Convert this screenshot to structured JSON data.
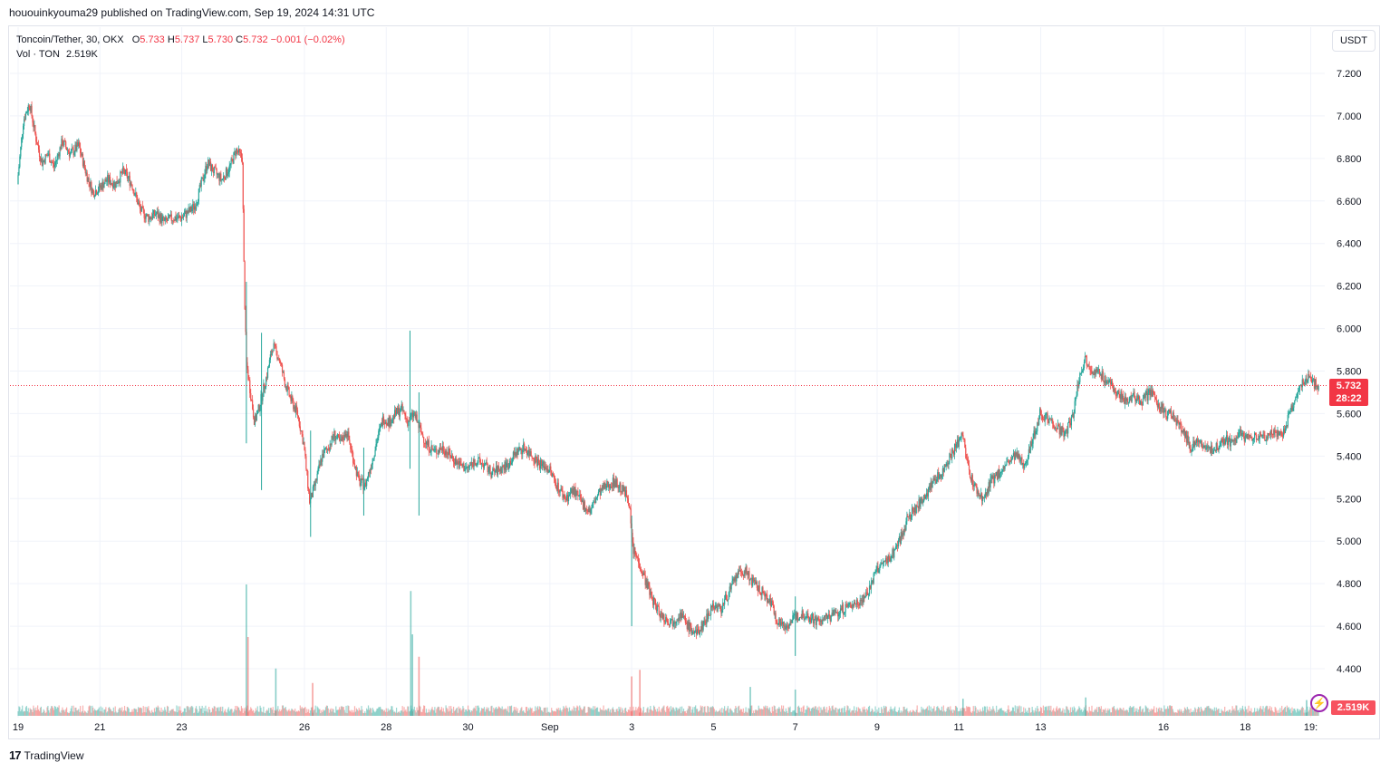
{
  "header": {
    "published_line": "hououinkyouma29 published on TradingView.com, Sep 19, 2024 14:31 UTC"
  },
  "legend": {
    "symbol": "Toncoin/Tether, 30, OKX",
    "open_label": "O",
    "open": "5.733",
    "high_label": "H",
    "high": "5.737",
    "low_label": "L",
    "low": "5.730",
    "close_label": "C",
    "close": "5.732",
    "change": "−0.001 (−0.02%)",
    "volume_label": "Vol · TON",
    "volume_value": "2.519K"
  },
  "price_axis": {
    "currency": "USDT",
    "current_price": "5.732",
    "countdown": "28:22",
    "volume_badge": "2.519K"
  },
  "footer": {
    "brand": "TradingView",
    "logo": "17"
  },
  "colors": {
    "up": "#26a69a",
    "down": "#ef5350",
    "price_line": "#f23645"
  },
  "chart_data": {
    "type": "candlestick",
    "ylim": [
      4.4,
      7.2
    ],
    "y_ticks": [
      7.2,
      7.0,
      6.8,
      6.6,
      6.4,
      6.2,
      6.0,
      5.8,
      5.6,
      5.4,
      5.2,
      5.0,
      4.8,
      4.6,
      4.4
    ],
    "y_tick_labels": [
      "7.200",
      "7.000",
      "6.800",
      "6.600",
      "6.400",
      "6.200",
      "6.000",
      "5.800",
      "5.600",
      "5.400",
      "5.200",
      "5.000",
      "4.800",
      "4.600",
      "4.400"
    ],
    "x_ticks": [
      {
        "label": "19",
        "day": 0
      },
      {
        "label": "21",
        "day": 2
      },
      {
        "label": "23",
        "day": 4
      },
      {
        "label": "26",
        "day": 7
      },
      {
        "label": "28",
        "day": 9
      },
      {
        "label": "30",
        "day": 11
      },
      {
        "label": "Sep",
        "day": 13
      },
      {
        "label": "3",
        "day": 15
      },
      {
        "label": "5",
        "day": 17
      },
      {
        "label": "7",
        "day": 19
      },
      {
        "label": "9",
        "day": 21
      },
      {
        "label": "11",
        "day": 23
      },
      {
        "label": "13",
        "day": 25
      },
      {
        "label": "16",
        "day": 28
      },
      {
        "label": "18",
        "day": 30
      },
      {
        "label": "19:",
        "day": 31.6
      }
    ],
    "x_range_days": [
      0,
      31.9
    ],
    "price_path": [
      [
        0.0,
        6.68
      ],
      [
        0.15,
        6.98
      ],
      [
        0.3,
        7.06
      ],
      [
        0.45,
        6.9
      ],
      [
        0.6,
        6.78
      ],
      [
        0.75,
        6.82
      ],
      [
        0.9,
        6.76
      ],
      [
        1.1,
        6.88
      ],
      [
        1.3,
        6.82
      ],
      [
        1.5,
        6.86
      ],
      [
        1.7,
        6.72
      ],
      [
        1.85,
        6.64
      ],
      [
        2.0,
        6.66
      ],
      [
        2.2,
        6.7
      ],
      [
        2.4,
        6.68
      ],
      [
        2.6,
        6.74
      ],
      [
        2.8,
        6.68
      ],
      [
        3.0,
        6.56
      ],
      [
        3.2,
        6.52
      ],
      [
        3.4,
        6.54
      ],
      [
        3.6,
        6.5
      ],
      [
        3.8,
        6.52
      ],
      [
        4.0,
        6.52
      ],
      [
        4.2,
        6.55
      ],
      [
        4.35,
        6.58
      ],
      [
        4.5,
        6.68
      ],
      [
        4.65,
        6.78
      ],
      [
        4.8,
        6.74
      ],
      [
        5.0,
        6.7
      ],
      [
        5.2,
        6.76
      ],
      [
        5.35,
        6.84
      ],
      [
        5.5,
        6.8
      ],
      [
        5.55,
        6.2
      ],
      [
        5.6,
        5.84
      ],
      [
        5.7,
        5.7
      ],
      [
        5.8,
        5.56
      ],
      [
        5.9,
        5.62
      ],
      [
        6.0,
        5.7
      ],
      [
        6.1,
        5.78
      ],
      [
        6.25,
        5.92
      ],
      [
        6.4,
        5.86
      ],
      [
        6.55,
        5.74
      ],
      [
        6.7,
        5.66
      ],
      [
        6.85,
        5.6
      ],
      [
        7.0,
        5.46
      ],
      [
        7.15,
        5.18
      ],
      [
        7.3,
        5.28
      ],
      [
        7.45,
        5.4
      ],
      [
        7.6,
        5.44
      ],
      [
        7.75,
        5.5
      ],
      [
        7.9,
        5.46
      ],
      [
        8.05,
        5.52
      ],
      [
        8.2,
        5.4
      ],
      [
        8.35,
        5.28
      ],
      [
        8.5,
        5.26
      ],
      [
        8.65,
        5.36
      ],
      [
        8.8,
        5.48
      ],
      [
        8.95,
        5.58
      ],
      [
        9.1,
        5.56
      ],
      [
        9.25,
        5.6
      ],
      [
        9.4,
        5.62
      ],
      [
        9.55,
        5.56
      ],
      [
        9.7,
        5.6
      ],
      [
        9.85,
        5.52
      ],
      [
        10.0,
        5.46
      ],
      [
        10.2,
        5.42
      ],
      [
        10.4,
        5.44
      ],
      [
        10.6,
        5.4
      ],
      [
        10.8,
        5.36
      ],
      [
        11.0,
        5.34
      ],
      [
        11.2,
        5.38
      ],
      [
        11.4,
        5.36
      ],
      [
        11.6,
        5.32
      ],
      [
        11.8,
        5.34
      ],
      [
        12.0,
        5.36
      ],
      [
        12.2,
        5.42
      ],
      [
        12.4,
        5.44
      ],
      [
        12.6,
        5.4
      ],
      [
        12.8,
        5.36
      ],
      [
        13.0,
        5.34
      ],
      [
        13.2,
        5.26
      ],
      [
        13.4,
        5.2
      ],
      [
        13.6,
        5.24
      ],
      [
        13.8,
        5.18
      ],
      [
        14.0,
        5.14
      ],
      [
        14.2,
        5.22
      ],
      [
        14.4,
        5.26
      ],
      [
        14.6,
        5.28
      ],
      [
        14.8,
        5.24
      ],
      [
        14.95,
        5.2
      ],
      [
        15.05,
        4.96
      ],
      [
        15.2,
        4.9
      ],
      [
        15.35,
        4.82
      ],
      [
        15.5,
        4.74
      ],
      [
        15.65,
        4.68
      ],
      [
        15.8,
        4.64
      ],
      [
        16.0,
        4.62
      ],
      [
        16.2,
        4.66
      ],
      [
        16.4,
        4.6
      ],
      [
        16.6,
        4.56
      ],
      [
        16.8,
        4.62
      ],
      [
        17.0,
        4.7
      ],
      [
        17.2,
        4.68
      ],
      [
        17.4,
        4.76
      ],
      [
        17.6,
        4.84
      ],
      [
        17.8,
        4.86
      ],
      [
        18.0,
        4.8
      ],
      [
        18.2,
        4.76
      ],
      [
        18.4,
        4.72
      ],
      [
        18.6,
        4.62
      ],
      [
        18.8,
        4.6
      ],
      [
        19.0,
        4.64
      ],
      [
        19.2,
        4.66
      ],
      [
        19.4,
        4.64
      ],
      [
        19.6,
        4.62
      ],
      [
        19.8,
        4.64
      ],
      [
        20.0,
        4.66
      ],
      [
        20.2,
        4.68
      ],
      [
        20.4,
        4.7
      ],
      [
        20.6,
        4.72
      ],
      [
        20.8,
        4.76
      ],
      [
        21.0,
        4.86
      ],
      [
        21.2,
        4.9
      ],
      [
        21.4,
        4.94
      ],
      [
        21.6,
        5.02
      ],
      [
        21.8,
        5.12
      ],
      [
        22.0,
        5.16
      ],
      [
        22.2,
        5.22
      ],
      [
        22.4,
        5.28
      ],
      [
        22.6,
        5.32
      ],
      [
        22.8,
        5.4
      ],
      [
        23.0,
        5.46
      ],
      [
        23.1,
        5.52
      ],
      [
        23.2,
        5.38
      ],
      [
        23.35,
        5.28
      ],
      [
        23.5,
        5.22
      ],
      [
        23.65,
        5.2
      ],
      [
        23.8,
        5.28
      ],
      [
        24.0,
        5.32
      ],
      [
        24.2,
        5.36
      ],
      [
        24.4,
        5.4
      ],
      [
        24.6,
        5.36
      ],
      [
        24.8,
        5.46
      ],
      [
        25.0,
        5.6
      ],
      [
        25.2,
        5.58
      ],
      [
        25.4,
        5.54
      ],
      [
        25.6,
        5.5
      ],
      [
        25.8,
        5.58
      ],
      [
        25.95,
        5.76
      ],
      [
        26.1,
        5.86
      ],
      [
        26.3,
        5.8
      ],
      [
        26.5,
        5.78
      ],
      [
        26.7,
        5.74
      ],
      [
        26.9,
        5.7
      ],
      [
        27.1,
        5.66
      ],
      [
        27.3,
        5.68
      ],
      [
        27.5,
        5.66
      ],
      [
        27.7,
        5.7
      ],
      [
        27.9,
        5.64
      ],
      [
        28.1,
        5.6
      ],
      [
        28.3,
        5.58
      ],
      [
        28.5,
        5.52
      ],
      [
        28.7,
        5.44
      ],
      [
        28.9,
        5.48
      ],
      [
        29.1,
        5.42
      ],
      [
        29.3,
        5.44
      ],
      [
        29.5,
        5.48
      ],
      [
        29.7,
        5.46
      ],
      [
        29.9,
        5.5
      ],
      [
        30.1,
        5.48
      ],
      [
        30.3,
        5.5
      ],
      [
        30.5,
        5.48
      ],
      [
        30.7,
        5.52
      ],
      [
        30.9,
        5.5
      ],
      [
        31.0,
        5.52
      ],
      [
        31.1,
        5.6
      ],
      [
        31.25,
        5.66
      ],
      [
        31.4,
        5.74
      ],
      [
        31.55,
        5.78
      ],
      [
        31.7,
        5.74
      ],
      [
        31.8,
        5.732
      ]
    ],
    "spikes": [
      {
        "day": 5.58,
        "high": 6.22,
        "low": 5.46
      },
      {
        "day": 5.95,
        "high": 5.98,
        "low": 5.24
      },
      {
        "day": 7.15,
        "high": 5.52,
        "low": 5.02
      },
      {
        "day": 8.45,
        "high": 5.44,
        "low": 5.12
      },
      {
        "day": 9.58,
        "high": 5.99,
        "low": 5.34
      },
      {
        "day": 9.8,
        "high": 5.7,
        "low": 5.12
      },
      {
        "day": 15.0,
        "high": 5.12,
        "low": 4.6
      },
      {
        "day": 19.0,
        "high": 4.74,
        "low": 4.46
      }
    ],
    "volume_spikes": [
      {
        "day": 5.58,
        "v": 1.0,
        "color": "up"
      },
      {
        "day": 5.62,
        "v": 0.6,
        "color": "down"
      },
      {
        "day": 9.6,
        "v": 0.95,
        "color": "up"
      },
      {
        "day": 9.64,
        "v": 0.62,
        "color": "up"
      },
      {
        "day": 9.8,
        "v": 0.45,
        "color": "down"
      },
      {
        "day": 6.3,
        "v": 0.36,
        "color": "up"
      },
      {
        "day": 7.2,
        "v": 0.25,
        "color": "down"
      },
      {
        "day": 15.0,
        "v": 0.3,
        "color": "down"
      },
      {
        "day": 15.2,
        "v": 0.35,
        "color": "down"
      },
      {
        "day": 17.9,
        "v": 0.22,
        "color": "up"
      },
      {
        "day": 19.0,
        "v": 0.2,
        "color": "up"
      },
      {
        "day": 23.1,
        "v": 0.13,
        "color": "up"
      },
      {
        "day": 26.1,
        "v": 0.14,
        "color": "up"
      },
      {
        "day": 31.5,
        "v": 0.12,
        "color": "up"
      }
    ],
    "current_price": 5.732
  }
}
